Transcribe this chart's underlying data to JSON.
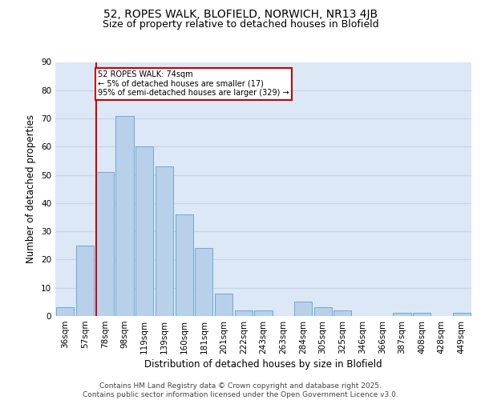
{
  "title_line1": "52, ROPES WALK, BLOFIELD, NORWICH, NR13 4JB",
  "title_line2": "Size of property relative to detached houses in Blofield",
  "xlabel": "Distribution of detached houses by size in Blofield",
  "ylabel": "Number of detached properties",
  "categories": [
    "36sqm",
    "57sqm",
    "78sqm",
    "98sqm",
    "119sqm",
    "139sqm",
    "160sqm",
    "181sqm",
    "201sqm",
    "222sqm",
    "243sqm",
    "263sqm",
    "284sqm",
    "305sqm",
    "325sqm",
    "346sqm",
    "366sqm",
    "387sqm",
    "408sqm",
    "428sqm",
    "449sqm"
  ],
  "values": [
    3,
    25,
    51,
    71,
    60,
    53,
    36,
    24,
    8,
    2,
    2,
    0,
    5,
    3,
    2,
    0,
    0,
    1,
    1,
    0,
    1
  ],
  "bar_color": "#b8d0ea",
  "bar_edge_color": "#6aaad4",
  "vline_x_index": 2,
  "vline_color": "#cc0000",
  "annotation_text": "52 ROPES WALK: 74sqm\n← 5% of detached houses are smaller (17)\n95% of semi-detached houses are larger (329) →",
  "annotation_box_color": "#cc0000",
  "ylim": [
    0,
    90
  ],
  "yticks": [
    0,
    10,
    20,
    30,
    40,
    50,
    60,
    70,
    80,
    90
  ],
  "grid_color": "#c8d4e8",
  "background_color": "#dce8f5",
  "footer_line1": "Contains HM Land Registry data © Crown copyright and database right 2025.",
  "footer_line2": "Contains public sector information licensed under the Open Government Licence v3.0.",
  "title_fontsize": 10,
  "subtitle_fontsize": 9,
  "tick_fontsize": 7.5,
  "ylabel_fontsize": 8.5,
  "xlabel_fontsize": 8.5,
  "footer_fontsize": 6.5
}
